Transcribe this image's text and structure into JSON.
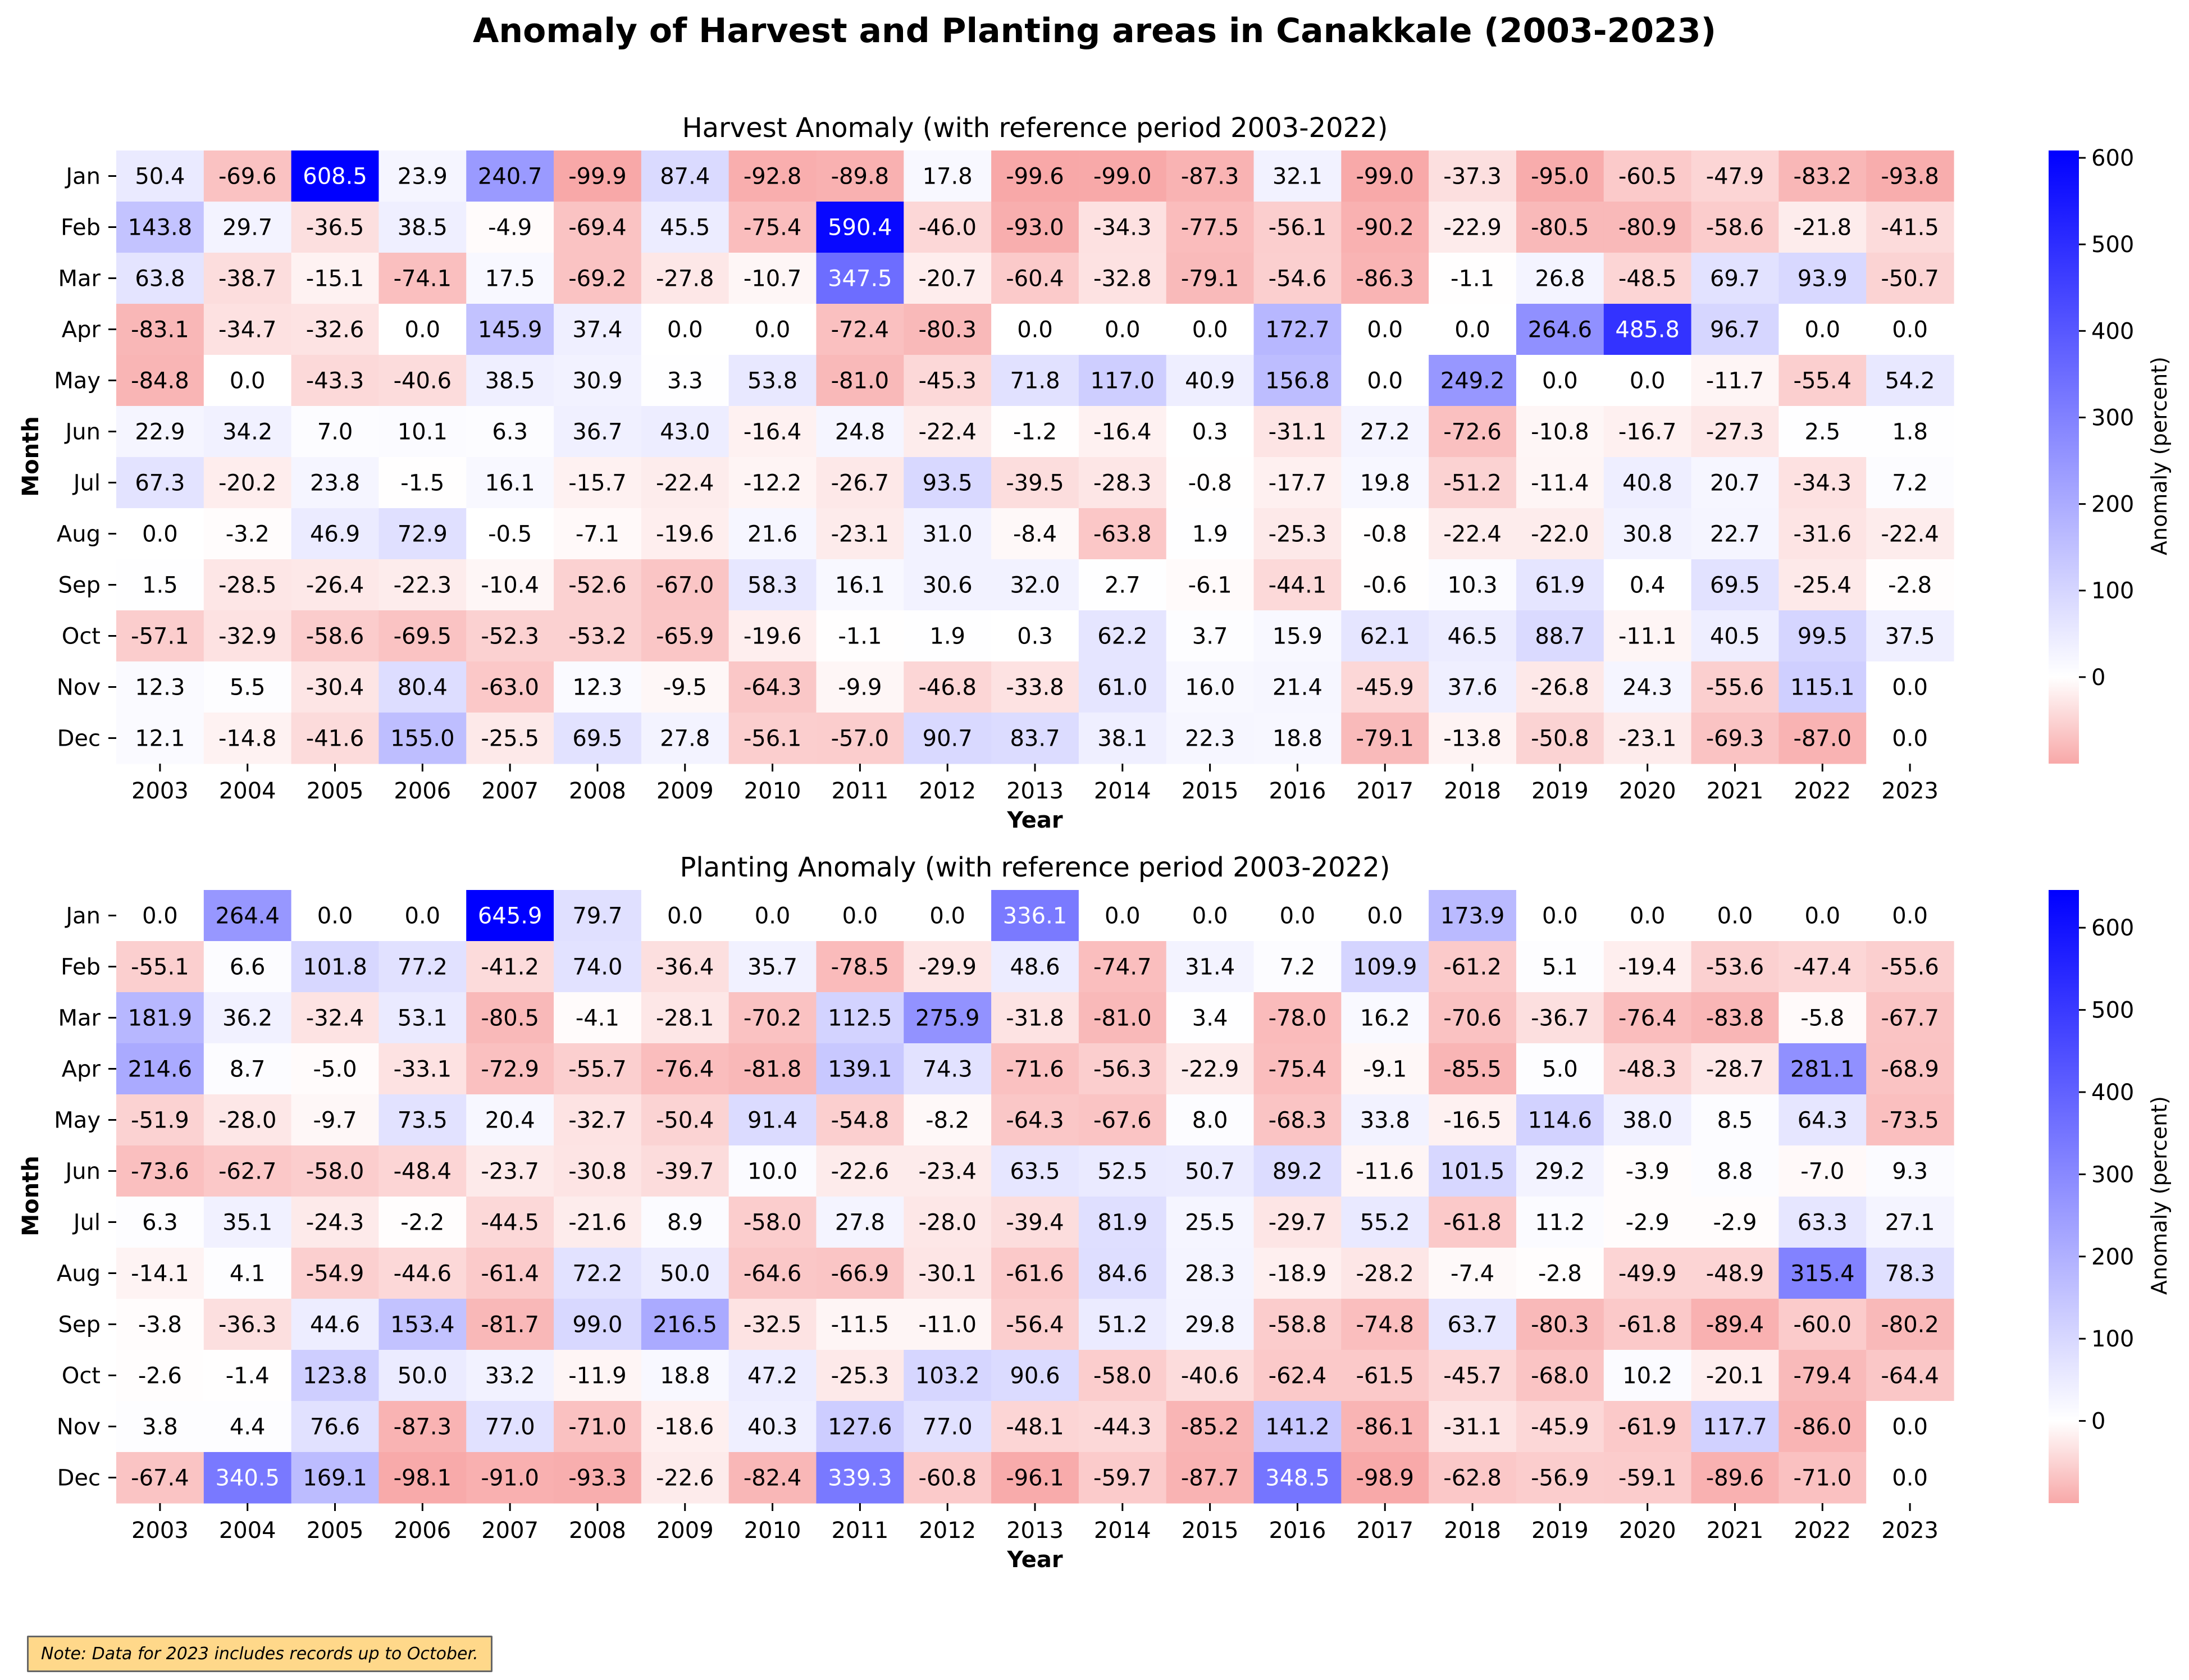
{
  "figure": {
    "title": "Anomaly of Harvest and Planting areas in Canakkale (2003-2023)",
    "note": "Note: Data for 2023 includes records up to October."
  },
  "colors": {
    "negative": "#f8a8a8",
    "zero": "#ffffff",
    "positive": "#0000ff"
  },
  "chart_data": [
    {
      "type": "heatmap",
      "title": "Harvest Anomaly (with reference period 2003-2022)",
      "xlabel": "Year",
      "ylabel": "Month",
      "colorbar_label": "Anomaly (percent)",
      "colorbar_ticks": [
        0,
        100,
        200,
        300,
        400,
        500,
        600
      ],
      "vmin": -100,
      "vmax": 608.5,
      "x": [
        "2003",
        "2004",
        "2005",
        "2006",
        "2007",
        "2008",
        "2009",
        "2010",
        "2011",
        "2012",
        "2013",
        "2014",
        "2015",
        "2016",
        "2017",
        "2018",
        "2019",
        "2020",
        "2021",
        "2022",
        "2023"
      ],
      "y": [
        "Jan",
        "Feb",
        "Mar",
        "Apr",
        "May",
        "Jun",
        "Jul",
        "Aug",
        "Sep",
        "Oct",
        "Nov",
        "Dec"
      ],
      "values": [
        [
          50.4,
          -69.6,
          608.5,
          23.9,
          240.7,
          -99.9,
          87.4,
          -92.8,
          -89.8,
          17.8,
          -99.6,
          -99.0,
          -87.3,
          32.1,
          -99.0,
          -37.3,
          -95.0,
          -60.5,
          -47.9,
          -83.2,
          -93.8
        ],
        [
          143.8,
          29.7,
          -36.5,
          38.5,
          -4.9,
          -69.4,
          45.5,
          -75.4,
          590.4,
          -46.0,
          -93.0,
          -34.3,
          -77.5,
          -56.1,
          -90.2,
          -22.9,
          -80.5,
          -80.9,
          -58.6,
          -21.8,
          -41.5
        ],
        [
          63.8,
          -38.7,
          -15.1,
          -74.1,
          17.5,
          -69.2,
          -27.8,
          -10.7,
          347.5,
          -20.7,
          -60.4,
          -32.8,
          -79.1,
          -54.6,
          -86.3,
          -1.1,
          26.8,
          -48.5,
          69.7,
          93.9,
          -50.7
        ],
        [
          -83.1,
          -34.7,
          -32.6,
          0.0,
          145.9,
          37.4,
          0.0,
          0.0,
          -72.4,
          -80.3,
          0.0,
          0.0,
          0.0,
          172.7,
          0.0,
          0.0,
          264.6,
          485.8,
          96.7,
          0.0,
          0.0
        ],
        [
          -84.8,
          0.0,
          -43.3,
          -40.6,
          38.5,
          30.9,
          3.3,
          53.8,
          -81.0,
          -45.3,
          71.8,
          117.0,
          40.9,
          156.8,
          0.0,
          249.2,
          0.0,
          0.0,
          -11.7,
          -55.4,
          54.2
        ],
        [
          22.9,
          34.2,
          7.0,
          10.1,
          6.3,
          36.7,
          43.0,
          -16.4,
          24.8,
          -22.4,
          -1.2,
          -16.4,
          0.3,
          -31.1,
          27.2,
          -72.6,
          -10.8,
          -16.7,
          -27.3,
          2.5,
          1.8
        ],
        [
          67.3,
          -20.2,
          23.8,
          -1.5,
          16.1,
          -15.7,
          -22.4,
          -12.2,
          -26.7,
          93.5,
          -39.5,
          -28.3,
          -0.8,
          -17.7,
          19.8,
          -51.2,
          -11.4,
          40.8,
          20.7,
          -34.3,
          7.2
        ],
        [
          0.0,
          -3.2,
          46.9,
          72.9,
          -0.5,
          -7.1,
          -19.6,
          21.6,
          -23.1,
          31.0,
          -8.4,
          -63.8,
          1.9,
          -25.3,
          -0.8,
          -22.4,
          -22.0,
          30.8,
          22.7,
          -31.6,
          -22.4
        ],
        [
          1.5,
          -28.5,
          -26.4,
          -22.3,
          -10.4,
          -52.6,
          -67.0,
          58.3,
          16.1,
          30.6,
          32.0,
          2.7,
          -6.1,
          -44.1,
          -0.6,
          10.3,
          61.9,
          0.4,
          69.5,
          -25.4,
          -2.8
        ],
        [
          -57.1,
          -32.9,
          -58.6,
          -69.5,
          -52.3,
          -53.2,
          -65.9,
          -19.6,
          -1.1,
          1.9,
          0.3,
          62.2,
          3.7,
          15.9,
          62.1,
          46.5,
          88.7,
          -11.1,
          40.5,
          99.5,
          37.5
        ],
        [
          12.3,
          5.5,
          -30.4,
          80.4,
          -63.0,
          12.3,
          -9.5,
          -64.3,
          -9.9,
          -46.8,
          -33.8,
          61.0,
          16.0,
          21.4,
          -45.9,
          37.6,
          -26.8,
          24.3,
          -55.6,
          115.1,
          0.0
        ],
        [
          12.1,
          -14.8,
          -41.6,
          155.0,
          -25.5,
          69.5,
          27.8,
          -56.1,
          -57.0,
          90.7,
          83.7,
          38.1,
          22.3,
          18.8,
          -79.1,
          -13.8,
          -50.8,
          -23.1,
          -69.3,
          -87.0,
          0.0
        ]
      ]
    },
    {
      "type": "heatmap",
      "title": "Planting Anomaly (with reference period 2003-2022)",
      "xlabel": "Year",
      "ylabel": "Month",
      "colorbar_label": "Anomaly (percent)",
      "colorbar_ticks": [
        0,
        100,
        200,
        300,
        400,
        500,
        600
      ],
      "vmin": -100,
      "vmax": 645.9,
      "x": [
        "2003",
        "2004",
        "2005",
        "2006",
        "2007",
        "2008",
        "2009",
        "2010",
        "2011",
        "2012",
        "2013",
        "2014",
        "2015",
        "2016",
        "2017",
        "2018",
        "2019",
        "2020",
        "2021",
        "2022",
        "2023"
      ],
      "y": [
        "Jan",
        "Feb",
        "Mar",
        "Apr",
        "May",
        "Jun",
        "Jul",
        "Aug",
        "Sep",
        "Oct",
        "Nov",
        "Dec"
      ],
      "values": [
        [
          0.0,
          264.4,
          0.0,
          0.0,
          645.9,
          79.7,
          0.0,
          0.0,
          0.0,
          0.0,
          336.1,
          0.0,
          0.0,
          0.0,
          0.0,
          173.9,
          0.0,
          0.0,
          0.0,
          0.0,
          0.0
        ],
        [
          -55.1,
          6.6,
          101.8,
          77.2,
          -41.2,
          74.0,
          -36.4,
          35.7,
          -78.5,
          -29.9,
          48.6,
          -74.7,
          31.4,
          7.2,
          109.9,
          -61.2,
          5.1,
          -19.4,
          -53.6,
          -47.4,
          -55.6
        ],
        [
          181.9,
          36.2,
          -32.4,
          53.1,
          -80.5,
          -4.1,
          -28.1,
          -70.2,
          112.5,
          275.9,
          -31.8,
          -81.0,
          3.4,
          -78.0,
          16.2,
          -70.6,
          -36.7,
          -76.4,
          -83.8,
          -5.8,
          -67.7
        ],
        [
          214.6,
          8.7,
          -5.0,
          -33.1,
          -72.9,
          -55.7,
          -76.4,
          -81.8,
          139.1,
          74.3,
          -71.6,
          -56.3,
          -22.9,
          -75.4,
          -9.1,
          -85.5,
          5.0,
          -48.3,
          -28.7,
          281.1,
          -68.9
        ],
        [
          -51.9,
          -28.0,
          -9.7,
          73.5,
          20.4,
          -32.7,
          -50.4,
          91.4,
          -54.8,
          -8.2,
          -64.3,
          -67.6,
          8.0,
          -68.3,
          33.8,
          -16.5,
          114.6,
          38.0,
          8.5,
          64.3,
          -73.5
        ],
        [
          -73.6,
          -62.7,
          -58.0,
          -48.4,
          -23.7,
          -30.8,
          -39.7,
          10.0,
          -22.6,
          -23.4,
          63.5,
          52.5,
          50.7,
          89.2,
          -11.6,
          101.5,
          29.2,
          -3.9,
          8.8,
          -7.0,
          9.3
        ],
        [
          6.3,
          35.1,
          -24.3,
          -2.2,
          -44.5,
          -21.6,
          8.9,
          -58.0,
          27.8,
          -28.0,
          -39.4,
          81.9,
          25.5,
          -29.7,
          55.2,
          -61.8,
          11.2,
          -2.9,
          -2.9,
          63.3,
          27.1
        ],
        [
          -14.1,
          4.1,
          -54.9,
          -44.6,
          -61.4,
          72.2,
          50.0,
          -64.6,
          -66.9,
          -30.1,
          -61.6,
          84.6,
          28.3,
          -18.9,
          -28.2,
          -7.4,
          -2.8,
          -49.9,
          -48.9,
          315.4,
          78.3
        ],
        [
          -3.8,
          -36.3,
          44.6,
          153.4,
          -81.7,
          99.0,
          216.5,
          -32.5,
          -11.5,
          -11.0,
          -56.4,
          51.2,
          29.8,
          -58.8,
          -74.8,
          63.7,
          -80.3,
          -61.8,
          -89.4,
          -60.0,
          -80.2
        ],
        [
          -2.6,
          -1.4,
          123.8,
          50.0,
          33.2,
          -11.9,
          18.8,
          47.2,
          -25.3,
          103.2,
          90.6,
          -58.0,
          -40.6,
          -62.4,
          -61.5,
          -45.7,
          -68.0,
          10.2,
          -20.1,
          -79.4,
          -64.4
        ],
        [
          3.8,
          4.4,
          76.6,
          -87.3,
          77.0,
          -71.0,
          -18.6,
          40.3,
          127.6,
          77.0,
          -48.1,
          -44.3,
          -85.2,
          141.2,
          -86.1,
          -31.1,
          -45.9,
          -61.9,
          117.7,
          -86.0,
          0.0
        ],
        [
          -67.4,
          340.5,
          169.1,
          -98.1,
          -91.0,
          -93.3,
          -22.6,
          -82.4,
          339.3,
          -60.8,
          -96.1,
          -59.7,
          -87.7,
          348.5,
          -98.9,
          -62.8,
          -56.9,
          -59.1,
          -89.6,
          -71.0,
          0.0
        ]
      ]
    }
  ]
}
